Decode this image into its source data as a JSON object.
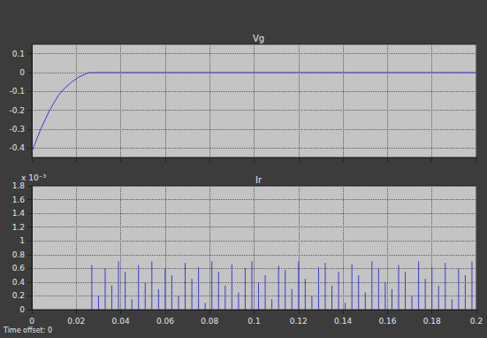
{
  "chart_data": [
    {
      "type": "line",
      "title": "Vg",
      "color": "#3a3ad6",
      "x": [
        0,
        0.002,
        0.004,
        0.006,
        0.008,
        0.01,
        0.012,
        0.015,
        0.018,
        0.021,
        0.024,
        0.026,
        0.05,
        0.1,
        0.15,
        0.2
      ],
      "values": [
        -0.42,
        -0.36,
        -0.3,
        -0.25,
        -0.2,
        -0.16,
        -0.12,
        -0.08,
        -0.05,
        -0.025,
        -0.008,
        0,
        0,
        0,
        0,
        0
      ],
      "xlim": [
        0,
        0.2
      ],
      "xticks": [
        0,
        0.02,
        0.04,
        0.06,
        0.08,
        0.1,
        0.12,
        0.14,
        0.16,
        0.18,
        0.2
      ],
      "ylim": [
        -0.45,
        0.15
      ],
      "yticks": [
        -0.4,
        -0.3,
        -0.2,
        -0.1,
        0,
        0.1
      ],
      "grid": true,
      "tick_labels": "y"
    },
    {
      "type": "bar",
      "title": "Ir",
      "color": "#3a3ad6",
      "annotation": "x 10⁻³",
      "x": [
        0.027,
        0.03,
        0.033,
        0.036,
        0.039,
        0.042,
        0.045,
        0.048,
        0.051,
        0.054,
        0.057,
        0.06,
        0.063,
        0.066,
        0.069,
        0.072,
        0.075,
        0.078,
        0.081,
        0.084,
        0.087,
        0.09,
        0.093,
        0.096,
        0.099,
        0.102,
        0.105,
        0.108,
        0.111,
        0.114,
        0.117,
        0.12,
        0.123,
        0.126,
        0.129,
        0.132,
        0.135,
        0.138,
        0.141,
        0.144,
        0.147,
        0.15,
        0.153,
        0.156,
        0.159,
        0.162,
        0.165,
        0.168,
        0.171,
        0.174,
        0.177,
        0.18,
        0.183,
        0.186,
        0.189,
        0.192,
        0.195,
        0.198
      ],
      "values": [
        0.65,
        0.2,
        0.6,
        0.35,
        0.7,
        0.55,
        0.15,
        0.65,
        0.4,
        0.7,
        0.3,
        0.6,
        0.5,
        0.2,
        0.68,
        0.45,
        0.62,
        0.1,
        0.7,
        0.55,
        0.35,
        0.66,
        0.25,
        0.6,
        0.7,
        0.4,
        0.5,
        0.15,
        0.64,
        0.58,
        0.3,
        0.7,
        0.45,
        0.2,
        0.62,
        0.68,
        0.35,
        0.55,
        0.1,
        0.66,
        0.5,
        0.25,
        0.7,
        0.6,
        0.4,
        0.3,
        0.65,
        0.55,
        0.2,
        0.7,
        0.45,
        0.62,
        0.35,
        0.68,
        0.15,
        0.6,
        0.5,
        0.7
      ],
      "xlim": [
        0,
        0.2
      ],
      "xticks": [
        0,
        0.02,
        0.04,
        0.06,
        0.08,
        0.1,
        0.12,
        0.14,
        0.16,
        0.18,
        0.2
      ],
      "ylim": [
        0,
        1.8
      ],
      "yticks": [
        0,
        0.2,
        0.4,
        0.6,
        0.8,
        1,
        1.2,
        1.4,
        1.6,
        1.8
      ],
      "grid": true
    }
  ],
  "status_text": "Time offset: 0"
}
